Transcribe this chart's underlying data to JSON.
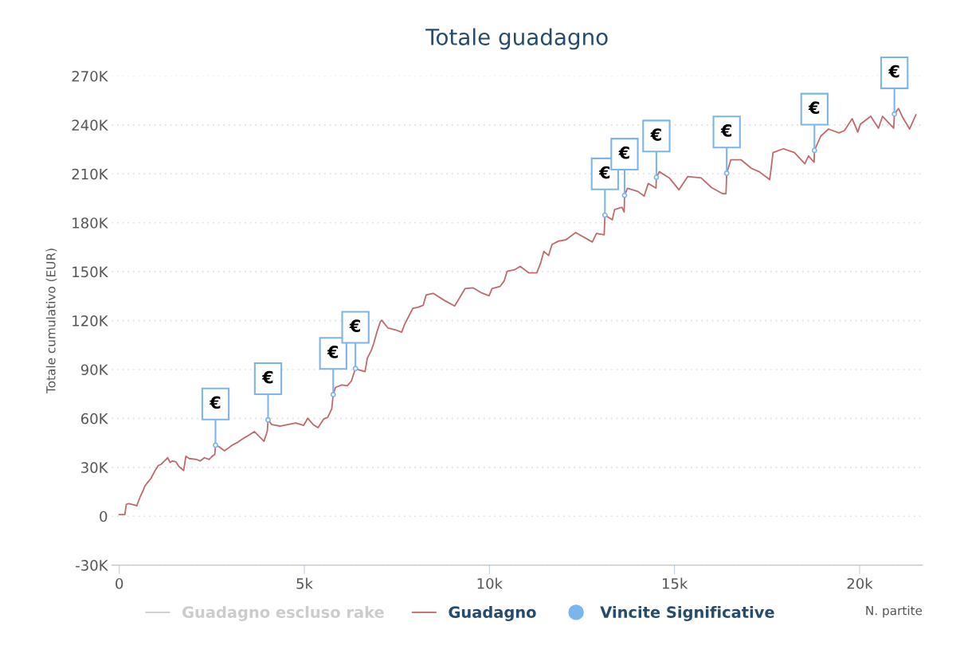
{
  "chart_data": {
    "type": "line",
    "title": "Totale guadagno",
    "xlabel": "N. partite",
    "ylabel": "Totale cumulativo (EUR)",
    "xlim": [
      -200,
      21700
    ],
    "ylim": [
      -30000,
      270000
    ],
    "xticks": [
      0,
      {
        "value": 5000,
        "label": "5k"
      },
      {
        "value": 10000,
        "label": "10k"
      },
      {
        "value": 15000,
        "label": "15k"
      },
      {
        "value": 20000,
        "label": "20k"
      }
    ],
    "yticks": [
      {
        "value": -30000,
        "label": "-30K"
      },
      0,
      {
        "value": 30000,
        "label": "30K"
      },
      {
        "value": 60000,
        "label": "60K"
      },
      {
        "value": 90000,
        "label": "90K"
      },
      {
        "value": 120000,
        "label": "120K"
      },
      {
        "value": 150000,
        "label": "150K"
      },
      {
        "value": 180000,
        "label": "180K"
      },
      {
        "value": 210000,
        "label": "210K"
      },
      {
        "value": 240000,
        "label": "240K"
      },
      {
        "value": 270000,
        "label": "270K"
      }
    ],
    "grid": "y",
    "legend": "bottom",
    "series": [
      {
        "name": "Guadagno escluso rake",
        "color": "#cccccc"
      },
      {
        "name": "Guadagno",
        "color": "#c06a6a",
        "x": [
          0,
          150,
          190,
          260,
          430,
          470,
          560,
          640,
          690,
          770,
          860,
          970,
          1050,
          1140,
          1220,
          1310,
          1370,
          1440,
          1530,
          1610,
          1740,
          1800,
          1890,
          2080,
          2190,
          2300,
          2430,
          2510,
          2580,
          2600,
          2690,
          2840,
          2940,
          3050,
          3180,
          3270,
          3370,
          3480,
          3650,
          3740,
          3910,
          4000,
          4020,
          4120,
          4340,
          4550,
          4770,
          4980,
          5090,
          5240,
          5370,
          5520,
          5630,
          5740,
          5780,
          5840,
          6010,
          6160,
          6270,
          6380,
          6490,
          6640,
          6700,
          6810,
          6870,
          6960,
          7050,
          7090,
          7260,
          7450,
          7630,
          7710,
          7820,
          7930,
          8050,
          8210,
          8290,
          8480,
          8790,
          9060,
          9190,
          9340,
          9560,
          9770,
          9990,
          10070,
          10290,
          10400,
          10480,
          10680,
          10830,
          11060,
          11280,
          11380,
          11470,
          11600,
          11690,
          11860,
          12070,
          12330,
          12780,
          12890,
          13100,
          13120,
          13320,
          13380,
          13580,
          13640,
          13650,
          13730,
          14010,
          14180,
          14290,
          14500,
          14510,
          14590,
          14860,
          15120,
          15360,
          15720,
          16000,
          16300,
          16390,
          16410,
          16520,
          16800,
          17080,
          17290,
          17570,
          17610,
          17660,
          17940,
          18240,
          18520,
          18620,
          18770,
          18780,
          18950,
          19160,
          19440,
          19590,
          19800,
          19950,
          20020,
          20300,
          20510,
          20620,
          20920,
          20940,
          21050,
          21160,
          21350,
          21520
        ],
        "values": [
          1000,
          1000,
          7300,
          7800,
          6800,
          6300,
          11600,
          15500,
          18400,
          20800,
          23300,
          28100,
          31000,
          32000,
          33900,
          35900,
          33000,
          33900,
          33400,
          30500,
          28100,
          36800,
          35400,
          34900,
          33900,
          35900,
          34900,
          36800,
          37800,
          43600,
          42700,
          40200,
          41700,
          43600,
          45100,
          46500,
          48000,
          49400,
          51900,
          49900,
          46000,
          52300,
          59100,
          56200,
          55300,
          56200,
          57200,
          55700,
          60100,
          56200,
          54300,
          59600,
          60600,
          65900,
          74600,
          79000,
          80500,
          80000,
          82900,
          90600,
          89700,
          88700,
          96900,
          101800,
          105700,
          112900,
          119200,
          120200,
          115400,
          114400,
          112900,
          117800,
          122600,
          127500,
          128000,
          129400,
          135700,
          136700,
          132300,
          128900,
          133800,
          139600,
          140100,
          137200,
          135200,
          139600,
          141000,
          144400,
          150300,
          151200,
          153200,
          149300,
          149300,
          155100,
          162400,
          159900,
          166700,
          168700,
          169600,
          174000,
          168200,
          173500,
          172600,
          184700,
          181800,
          188100,
          189500,
          186600,
          196800,
          201200,
          199200,
          196300,
          204100,
          201200,
          207900,
          211300,
          207500,
          200200,
          208400,
          207500,
          201600,
          197800,
          197800,
          210400,
          218600,
          218600,
          213300,
          211300,
          206500,
          213300,
          223000,
          225400,
          223000,
          216200,
          221000,
          217100,
          224400,
          233100,
          237500,
          235100,
          236500,
          243800,
          235600,
          240400,
          245300,
          238000,
          245300,
          238000,
          246700,
          250100,
          244800,
          237500,
          246200
        ]
      },
      {
        "name": "Vincite Significative",
        "type": "scatter",
        "color": "#7cb5ec",
        "marker": "circle",
        "x": [
          2600,
          4020,
          5780,
          6380,
          13120,
          13650,
          14510,
          16410,
          18780,
          20940
        ],
        "values": [
          43600,
          59100,
          74600,
          90600,
          184700,
          196800,
          207900,
          210400,
          224400,
          246700
        ],
        "value_labels": [
          "€",
          "€",
          "€",
          "€",
          "€",
          "€",
          "€",
          "€",
          "€",
          "€"
        ]
      }
    ]
  }
}
